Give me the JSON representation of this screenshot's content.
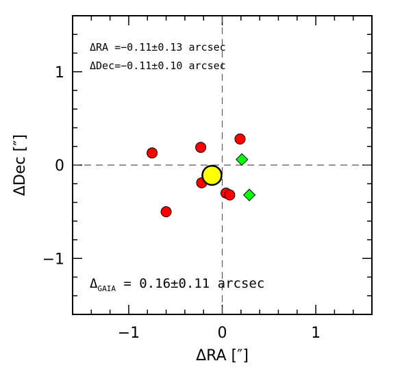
{
  "chart_data": {
    "type": "scatter",
    "xlabel": "ΔRA [″]",
    "ylabel": "ΔDec [″]",
    "xlim": [
      -1.6,
      1.6
    ],
    "ylim": [
      -1.6,
      1.6
    ],
    "xticks": [
      -1,
      0,
      1
    ],
    "yticks": [
      -1,
      0,
      1
    ],
    "xtick_labels": [
      "−1",
      "0",
      "1"
    ],
    "ytick_labels": [
      "−1",
      "0",
      "1"
    ],
    "grid": false,
    "crosshair": {
      "x": 0,
      "y": 0,
      "style": "dashed"
    },
    "series": [
      {
        "marker": "circle",
        "color": "#ff0000",
        "points": [
          {
            "x": -0.75,
            "y": 0.13
          },
          {
            "x": -0.23,
            "y": 0.19
          },
          {
            "x": 0.19,
            "y": 0.28
          },
          {
            "x": -0.22,
            "y": -0.19
          },
          {
            "x": 0.04,
            "y": -0.3
          },
          {
            "x": 0.08,
            "y": -0.32
          },
          {
            "x": -0.6,
            "y": -0.5
          }
        ]
      },
      {
        "marker": "diamond",
        "color": "#00ff00",
        "points": [
          {
            "x": 0.21,
            "y": 0.06
          },
          {
            "x": 0.29,
            "y": -0.32
          }
        ]
      },
      {
        "marker": "circle-large",
        "color": "#ffff00",
        "points": [
          {
            "x": -0.11,
            "y": -0.11
          }
        ]
      }
    ],
    "annotations": {
      "dra": "ΔRA =−0.11±0.13 arcsec",
      "ddec": "ΔDec=−0.11±0.10 arcsec",
      "gaia_delta": "Δ",
      "gaia_sub": "GAIA",
      "gaia_value": " = 0.16±0.11 arcsec"
    }
  }
}
